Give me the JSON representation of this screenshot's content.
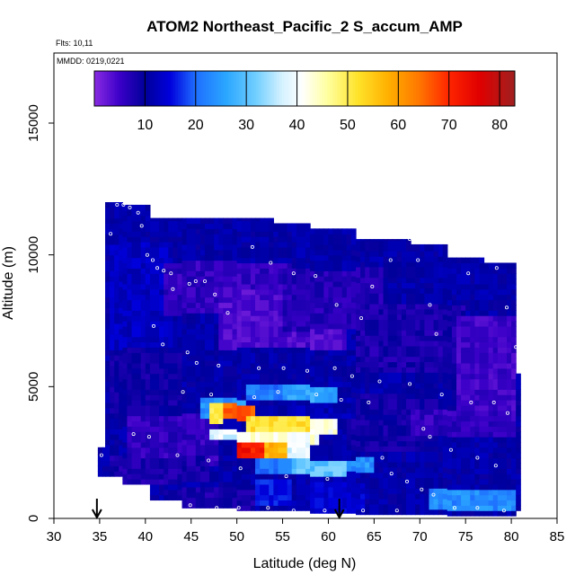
{
  "chart_data": {
    "type": "heatmap",
    "title": "ATOM2 Northeast_Pacific_2 S_accum_AMP",
    "flights_text": "Flts: 10,11",
    "dates_text": "MMDD: 0219,0221",
    "xlabel": "Latitude (deg N)",
    "ylabel": "Altitude (m)",
    "xlim": [
      30,
      85
    ],
    "ylim": [
      0,
      17500
    ],
    "xticks": [
      30,
      35,
      40,
      45,
      50,
      55,
      60,
      65,
      70,
      75,
      80,
      85
    ],
    "yticks": [
      0,
      5000,
      10000,
      15000
    ],
    "colorbar": {
      "range": [
        0,
        83
      ],
      "ticks": [
        10,
        20,
        30,
        40,
        50,
        60,
        70,
        80
      ],
      "stops": [
        {
          "v": 0,
          "c": "#8a2be2"
        },
        {
          "v": 5,
          "c": "#3b00c8"
        },
        {
          "v": 10,
          "c": "#00009a"
        },
        {
          "v": 15,
          "c": "#0000dd"
        },
        {
          "v": 20,
          "c": "#1e6fff"
        },
        {
          "v": 26,
          "c": "#2aa6ff"
        },
        {
          "v": 32,
          "c": "#72cfff"
        },
        {
          "v": 37,
          "c": "#d4f1ff"
        },
        {
          "v": 41,
          "c": "#ffffff"
        },
        {
          "v": 46,
          "c": "#ffffa0"
        },
        {
          "v": 52,
          "c": "#ffe32a"
        },
        {
          "v": 58,
          "c": "#ffb000"
        },
        {
          "v": 64,
          "c": "#ff7800"
        },
        {
          "v": 70,
          "c": "#ff2400"
        },
        {
          "v": 76,
          "c": "#e00000"
        },
        {
          "v": 83,
          "c": "#a02020"
        }
      ]
    },
    "columns": [
      [
        34.8,
        35.6,
        1600,
        2700
      ],
      [
        35.6,
        37.5,
        1600,
        12000
      ],
      [
        37.5,
        40.5,
        1300,
        11900
      ],
      [
        40.5,
        44,
        700,
        11400
      ],
      [
        44,
        50,
        400,
        11400
      ],
      [
        50,
        54,
        300,
        11400
      ],
      [
        54,
        58,
        300,
        11200
      ],
      [
        58,
        63,
        200,
        11000
      ],
      [
        63,
        69,
        150,
        10600
      ],
      [
        69,
        73,
        150,
        10400
      ],
      [
        73,
        77,
        100,
        9900
      ],
      [
        77,
        80.5,
        100,
        9700
      ],
      [
        80.5,
        81,
        300,
        5500
      ]
    ],
    "base_value": 11,
    "regions": [
      {
        "x": [
          36,
          43
        ],
        "y": [
          6500,
          10500
        ],
        "v": 13
      },
      {
        "x": [
          42,
          56
        ],
        "y": [
          7800,
          9800
        ],
        "v": 6
      },
      {
        "x": [
          48,
          62
        ],
        "y": [
          6500,
          8800
        ],
        "v": 4
      },
      {
        "x": [
          55,
          66
        ],
        "y": [
          7200,
          9500
        ],
        "v": 7
      },
      {
        "x": [
          63,
          75
        ],
        "y": [
          5600,
          8200
        ],
        "v": 8
      },
      {
        "x": [
          74,
          80.5
        ],
        "y": [
          4200,
          7800
        ],
        "v": 5
      },
      {
        "x": [
          36,
          44
        ],
        "y": [
          4000,
          6500
        ],
        "v": 9
      },
      {
        "x": [
          38,
          48
        ],
        "y": [
          2000,
          4000
        ],
        "v": 6
      },
      {
        "x": [
          62,
          72
        ],
        "y": [
          2600,
          4800
        ],
        "v": 9
      },
      {
        "x": [
          69,
          80.5
        ],
        "y": [
          3200,
          4200
        ],
        "v": 6
      },
      {
        "x": [
          36,
          47
        ],
        "y": [
          1400,
          2400
        ],
        "v": 8
      },
      {
        "x": [
          56,
          63
        ],
        "y": [
          3800,
          4600
        ],
        "v": 12
      },
      {
        "x": [
          52,
          56
        ],
        "y": [
          600,
          1600
        ],
        "v": 16
      },
      {
        "x": [
          58,
          64
        ],
        "y": [
          300,
          1400
        ],
        "v": 14
      },
      {
        "x": [
          71,
          80.5
        ],
        "y": [
          300,
          1100
        ],
        "v": 23
      },
      {
        "x": [
          42,
          52
        ],
        "y": [
          300,
          1200
        ],
        "v": 8
      },
      {
        "x": [
          46,
          51
        ],
        "y": [
          3800,
          4600
        ],
        "v": 24
      },
      {
        "x": [
          51,
          55
        ],
        "y": [
          4600,
          5200
        ],
        "v": 22
      },
      {
        "x": [
          55,
          61
        ],
        "y": [
          4500,
          5100
        ],
        "v": 26
      },
      {
        "x": [
          47,
          48.5
        ],
        "y": [
          3600,
          4500
        ],
        "v": 50
      },
      {
        "x": [
          48.5,
          52
        ],
        "y": [
          3800,
          4400
        ],
        "v": 66
      },
      {
        "x": [
          51,
          58
        ],
        "y": [
          3300,
          3900
        ],
        "v": 52
      },
      {
        "x": [
          58,
          61
        ],
        "y": [
          3300,
          3900
        ],
        "v": 42
      },
      {
        "x": [
          47,
          50
        ],
        "y": [
          3000,
          3500
        ],
        "v": 38
      },
      {
        "x": [
          50,
          59
        ],
        "y": [
          2900,
          3400
        ],
        "v": 42
      },
      {
        "x": [
          50,
          53
        ],
        "y": [
          2300,
          2900
        ],
        "v": 72
      },
      {
        "x": [
          53,
          55.5
        ],
        "y": [
          2300,
          2900
        ],
        "v": 58
      },
      {
        "x": [
          55.5,
          58
        ],
        "y": [
          2300,
          2900
        ],
        "v": 38
      },
      {
        "x": [
          52,
          56
        ],
        "y": [
          1700,
          2300
        ],
        "v": 22
      },
      {
        "x": [
          56,
          62
        ],
        "y": [
          1700,
          2300
        ],
        "v": 30
      },
      {
        "x": [
          62,
          65
        ],
        "y": [
          1800,
          2300
        ],
        "v": 24
      }
    ],
    "points": [
      [
        35.2,
        2400
      ],
      [
        36.2,
        10800
      ],
      [
        36.9,
        11900
      ],
      [
        37.6,
        11900
      ],
      [
        38.3,
        11800
      ],
      [
        39.2,
        11600
      ],
      [
        39.6,
        11100
      ],
      [
        40.2,
        10000
      ],
      [
        40.8,
        9800
      ],
      [
        41.3,
        9500
      ],
      [
        42.0,
        9400
      ],
      [
        42.8,
        9300
      ],
      [
        43.0,
        8700
      ],
      [
        44.8,
        8900
      ],
      [
        45.5,
        9000
      ],
      [
        46.5,
        9000
      ],
      [
        47.6,
        8500
      ],
      [
        49.0,
        7800
      ],
      [
        51.7,
        10300
      ],
      [
        53.7,
        9700
      ],
      [
        56.2,
        9300
      ],
      [
        58.6,
        9200
      ],
      [
        60.9,
        8100
      ],
      [
        63.6,
        7600
      ],
      [
        64.8,
        8800
      ],
      [
        66.8,
        9800
      ],
      [
        68.9,
        10600
      ],
      [
        69.8,
        9800
      ],
      [
        71.1,
        8100
      ],
      [
        71.8,
        7000
      ],
      [
        73.7,
        10000
      ],
      [
        75.3,
        9300
      ],
      [
        77.4,
        9800
      ],
      [
        78.4,
        9500
      ],
      [
        79.5,
        8000
      ],
      [
        80.5,
        6500
      ],
      [
        40.9,
        7300
      ],
      [
        41.9,
        6600
      ],
      [
        44.6,
        6300
      ],
      [
        45.6,
        5900
      ],
      [
        48.0,
        5800
      ],
      [
        52.4,
        5700
      ],
      [
        55.1,
        5700
      ],
      [
        57.7,
        5600
      ],
      [
        60.7,
        5700
      ],
      [
        62.6,
        5400
      ],
      [
        65.6,
        5200
      ],
      [
        68.9,
        5100
      ],
      [
        72.4,
        4700
      ],
      [
        75.6,
        4400
      ],
      [
        78.1,
        4400
      ],
      [
        79.6,
        4000
      ],
      [
        44.1,
        4800
      ],
      [
        47.2,
        4700
      ],
      [
        51.9,
        4600
      ],
      [
        54.5,
        4800
      ],
      [
        58.7,
        4700
      ],
      [
        61.4,
        4500
      ],
      [
        64.4,
        4400
      ],
      [
        70.4,
        3400
      ],
      [
        71.1,
        3100
      ],
      [
        73.4,
        2600
      ],
      [
        76.3,
        2300
      ],
      [
        78.3,
        2000
      ],
      [
        38.7,
        3200
      ],
      [
        40.4,
        3100
      ],
      [
        43.5,
        2400
      ],
      [
        46.9,
        2200
      ],
      [
        50.4,
        1900
      ],
      [
        55.4,
        1600
      ],
      [
        59.9,
        1500
      ],
      [
        65.9,
        2300
      ],
      [
        66.9,
        1700
      ],
      [
        68.6,
        1400
      ],
      [
        70.2,
        1100
      ],
      [
        71.5,
        900
      ],
      [
        73.8,
        400
      ],
      [
        76.3,
        400
      ],
      [
        79.2,
        300
      ],
      [
        38.9,
        400
      ],
      [
        40.6,
        500
      ],
      [
        42.9,
        400
      ],
      [
        44.9,
        500
      ],
      [
        47.8,
        400
      ],
      [
        50.2,
        400
      ],
      [
        53.4,
        400
      ],
      [
        56.2,
        300
      ],
      [
        59.6,
        300
      ],
      [
        63.8,
        300
      ],
      [
        67.5,
        300
      ]
    ],
    "arrows": [
      34.7,
      61.2
    ]
  }
}
